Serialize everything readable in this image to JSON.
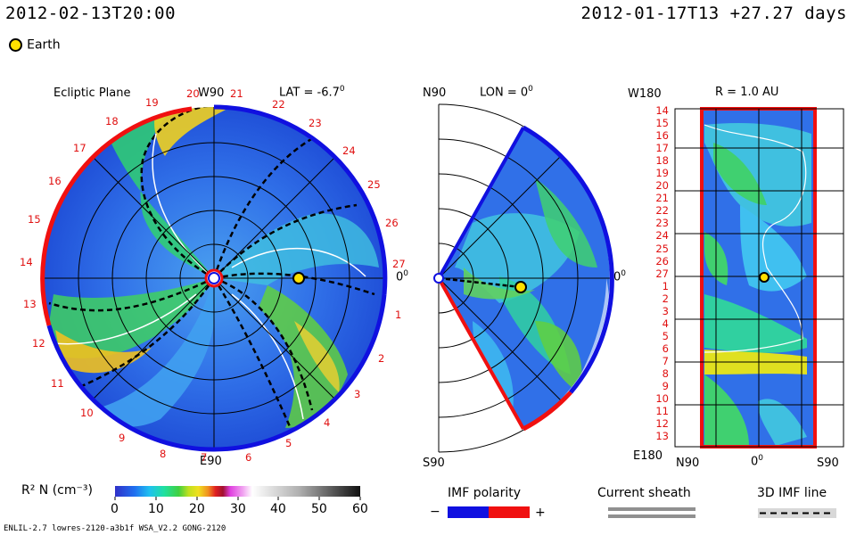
{
  "header": {
    "current_time": "2012-02-13T20:00",
    "reference": "2012-01-17T13 +27.27 days",
    "earth_label": "Earth"
  },
  "panels": {
    "ecliptic": {
      "title": "Ecliptic Plane",
      "top_label": "W90",
      "bottom_label": "E90",
      "lat_label": "LAT = -6.7",
      "right_label": "0",
      "carrington_numbers": [
        "1",
        "2",
        "3",
        "4",
        "5",
        "6",
        "7",
        "8",
        "9",
        "10",
        "11",
        "12",
        "13",
        "14",
        "15",
        "16",
        "17",
        "18",
        "19",
        "20",
        "21",
        "22",
        "23",
        "24",
        "25",
        "26",
        "27"
      ]
    },
    "meridional": {
      "top_label": "N90",
      "bottom_label": "S90",
      "lon_label": "LON = 0",
      "right_label": "0"
    },
    "radial": {
      "top_left_label": "W180",
      "bottom_left_label": "E180",
      "r_label": "R = 1.0 AU",
      "left_numbers": [
        "14",
        "15",
        "16",
        "17",
        "18",
        "19",
        "20",
        "21",
        "22",
        "23",
        "24",
        "25",
        "26",
        "27",
        "1",
        "2",
        "3",
        "4",
        "5",
        "6",
        "7",
        "8",
        "9",
        "10",
        "11",
        "12",
        "13"
      ],
      "x_labels": [
        "N90",
        "0",
        "S90"
      ]
    }
  },
  "colorbar": {
    "label": "R² N (cm⁻³)",
    "ticks": [
      "0",
      "10",
      "20",
      "30",
      "40",
      "50",
      "60"
    ]
  },
  "legend": {
    "imf_title": "IMF polarity",
    "imf_minus": "−",
    "imf_plus": "+",
    "sheath_title": "Current sheath",
    "imf3d_title": "3D IMF line",
    "colors": {
      "negative": "#1010e0",
      "positive": "#f01010"
    }
  },
  "footer": {
    "model": "ENLIL-2.7 lowres-2120-a3b1f WSA_V2.2 GONG-2120"
  }
}
